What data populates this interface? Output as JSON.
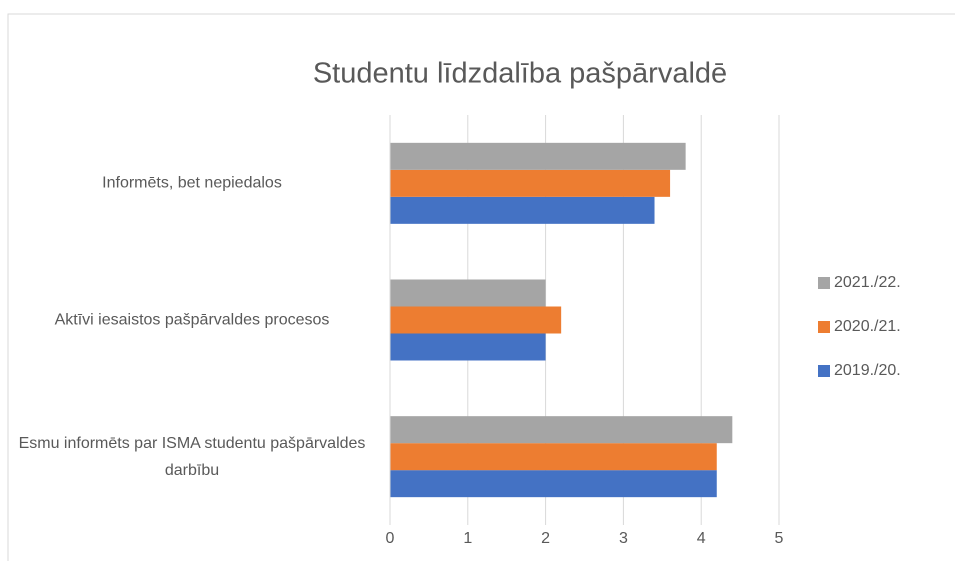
{
  "chart_data": {
    "type": "hbar",
    "title": "Studentu līdzdalība pašpārvaldē",
    "categories": [
      "Esmu informēts par ISMA studentu pašpārvaldes darbību",
      "Aktīvi iesaistos pašpārvaldes procesos",
      "Informēts, bet nepiedalos"
    ],
    "series": [
      {
        "name": "2019./20.",
        "color": "#4472c4",
        "values": [
          4.2,
          2.0,
          3.4
        ]
      },
      {
        "name": "2020./21.",
        "color": "#ed7d31",
        "values": [
          4.2,
          2.2,
          3.6
        ]
      },
      {
        "name": "2021./22.",
        "color": "#a5a5a5",
        "values": [
          4.4,
          2.0,
          3.8
        ]
      }
    ],
    "xlim": [
      0,
      5
    ],
    "xticks": [
      0,
      1,
      2,
      3,
      4,
      5
    ],
    "grid": true,
    "legend": "right"
  }
}
